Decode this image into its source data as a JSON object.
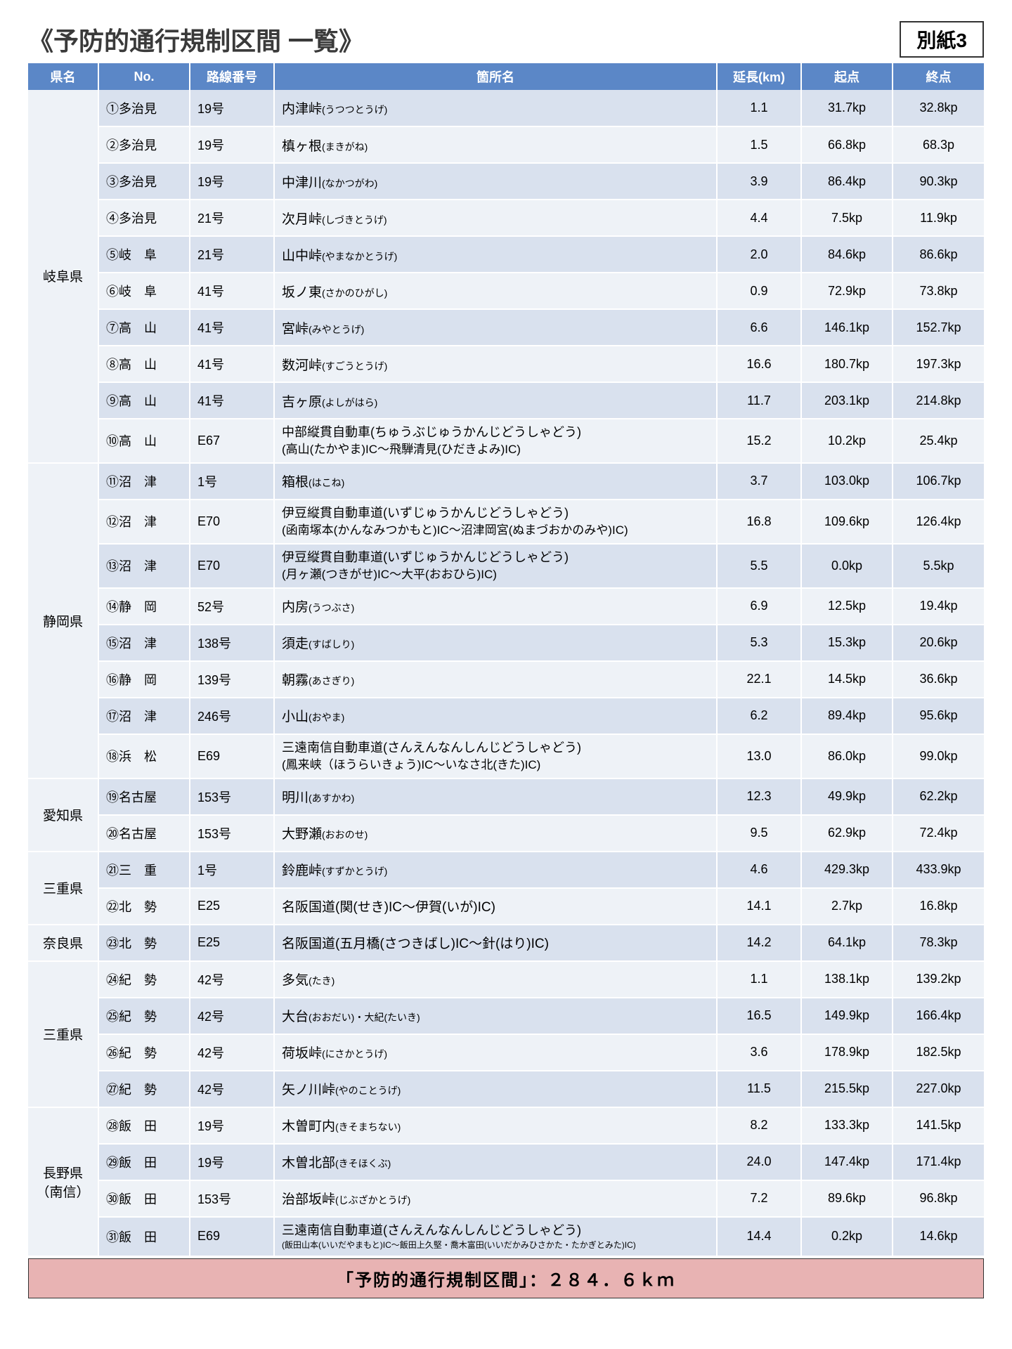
{
  "header": {
    "title": "《予防的通行規制区間 一覧》",
    "attachment": "別紙3"
  },
  "columns": [
    "県名",
    "No.",
    "路線番号",
    "箇所名",
    "延長(km)",
    "起点",
    "終点"
  ],
  "total": "「予防的通行規制区間」：２８４．６ｋｍ",
  "prefGroups": [
    {
      "pref": "岐阜県",
      "rows": [
        {
          "no": "①多治見",
          "route": "19号",
          "name": "内津峠",
          "reading": "(うつつとうげ)",
          "len": "1.1",
          "start": "31.7kp",
          "end": "32.8kp"
        },
        {
          "no": "②多治見",
          "route": "19号",
          "name": "槙ヶ根",
          "reading": "(まきがね)",
          "len": "1.5",
          "start": "66.8kp",
          "end": "68.3p"
        },
        {
          "no": "③多治見",
          "route": "19号",
          "name": "中津川",
          "reading": "(なかつがわ)",
          "len": "3.9",
          "start": "86.4kp",
          "end": "90.3kp"
        },
        {
          "no": "④多治見",
          "route": "21号",
          "name": "次月峠",
          "reading": "(しづきとうげ)",
          "len": "4.4",
          "start": "7.5kp",
          "end": "11.9kp"
        },
        {
          "no": "⑤岐　阜",
          "route": "21号",
          "name": "山中峠",
          "reading": "(やまなかとうげ)",
          "len": "2.0",
          "start": "84.6kp",
          "end": "86.6kp"
        },
        {
          "no": "⑥岐　阜",
          "route": "41号",
          "name": "坂ノ東",
          "reading": "(さかのひがし)",
          "len": "0.9",
          "start": "72.9kp",
          "end": "73.8kp"
        },
        {
          "no": "⑦高　山",
          "route": "41号",
          "name": "宮峠",
          "reading": "(みやとうげ)",
          "len": "6.6",
          "start": "146.1kp",
          "end": "152.7kp"
        },
        {
          "no": "⑧高　山",
          "route": "41号",
          "name": "数河峠",
          "reading": "(すごうとうげ)",
          "len": "16.6",
          "start": "180.7kp",
          "end": "197.3kp"
        },
        {
          "no": "⑨高　山",
          "route": "41号",
          "name": "吉ヶ原",
          "reading": "(よしがはら)",
          "len": "11.7",
          "start": "203.1kp",
          "end": "214.8kp"
        },
        {
          "no": "⑩高　山",
          "route": "E67",
          "name2": "中部縦貫自動車(ちゅうぶじゅうかんじどうしゃどう)",
          "name2b": "(高山(たかやま)IC～飛騨清見(ひだきよみ)IC)",
          "len": "15.2",
          "start": "10.2kp",
          "end": "25.4kp"
        }
      ]
    },
    {
      "pref": "静岡県",
      "rows": [
        {
          "no": "⑪沼　津",
          "route": "1号",
          "name": "箱根",
          "reading": "(はこね)",
          "len": "3.7",
          "start": "103.0kp",
          "end": "106.7kp"
        },
        {
          "no": "⑫沼　津",
          "route": "E70",
          "name2": "伊豆縦貫自動車道(いずじゅうかんじどうしゃどう)",
          "name2b": "(函南塚本(かんなみつかもと)IC～沼津岡宮(ぬまづおかのみや)IC)",
          "len": "16.8",
          "start": "109.6kp",
          "end": "126.4kp"
        },
        {
          "no": "⑬沼　津",
          "route": "E70",
          "name2": "伊豆縦貫自動車道(いずじゅうかんじどうしゃどう)",
          "name2b": "(月ヶ瀬(つきがせ)IC～大平(おおひら)IC)",
          "len": "5.5",
          "start": "0.0kp",
          "end": "5.5kp"
        },
        {
          "no": "⑭静　岡",
          "route": "52号",
          "name": "内房",
          "reading": "(うつぶさ)",
          "len": "6.9",
          "start": "12.5kp",
          "end": "19.4kp"
        },
        {
          "no": "⑮沼　津",
          "route": "138号",
          "name": "須走",
          "reading": "(すばしり)",
          "len": "5.3",
          "start": "15.3kp",
          "end": "20.6kp"
        },
        {
          "no": "⑯静　岡",
          "route": "139号",
          "name": "朝霧",
          "reading": "(あさぎり)",
          "len": "22.1",
          "start": "14.5kp",
          "end": "36.6kp"
        },
        {
          "no": "⑰沼　津",
          "route": "246号",
          "name": "小山",
          "reading": "(おやま)",
          "len": "6.2",
          "start": "89.4kp",
          "end": "95.6kp"
        },
        {
          "no": "⑱浜　松",
          "route": "E69",
          "name2": "三遠南信自動車道(さんえんなんしんじどうしゃどう)",
          "name2b": "(鳳来峡（ほうらいきょう)IC～いなさ北(きた)IC)",
          "len": "13.0",
          "start": "86.0kp",
          "end": "99.0kp"
        }
      ]
    },
    {
      "pref": "愛知県",
      "rows": [
        {
          "no": "⑲名古屋",
          "route": "153号",
          "name": "明川",
          "reading": "(あすかわ)",
          "len": "12.3",
          "start": "49.9kp",
          "end": "62.2kp"
        },
        {
          "no": "⑳名古屋",
          "route": "153号",
          "name": "大野瀬",
          "reading": "(おおのせ)",
          "len": "9.5",
          "start": "62.9kp",
          "end": "72.4kp"
        }
      ]
    },
    {
      "pref": "三重県",
      "rows": [
        {
          "no": "㉑三　重",
          "route": "1号",
          "name": "鈴鹿峠",
          "reading": "(すずかとうげ)",
          "len": "4.6",
          "start": "429.3kp",
          "end": "433.9kp"
        },
        {
          "no": "㉒北　勢",
          "route": "E25",
          "nameOnly": "名阪国道(関(せき)IC～伊賀(いが)IC)",
          "len": "14.1",
          "start": "2.7kp",
          "end": "16.8kp"
        }
      ]
    },
    {
      "pref": "奈良県",
      "rows": [
        {
          "no": "㉓北　勢",
          "route": "E25",
          "nameOnly": "名阪国道(五月橋(さつきばし)IC～針(はり)IC)",
          "len": "14.2",
          "start": "64.1kp",
          "end": "78.3kp"
        }
      ]
    },
    {
      "pref": "三重県",
      "rows": [
        {
          "no": "㉔紀　勢",
          "route": "42号",
          "name": "多気",
          "reading": "(たき)",
          "len": "1.1",
          "start": "138.1kp",
          "end": "139.2kp"
        },
        {
          "no": "㉕紀　勢",
          "route": "42号",
          "name": "大台",
          "reading": "(おおだい)・大紀(たいき)",
          "len": "16.5",
          "start": "149.9kp",
          "end": "166.4kp"
        },
        {
          "no": "㉖紀　勢",
          "route": "42号",
          "name": "荷坂峠",
          "reading": "(にさかとうげ)",
          "len": "3.6",
          "start": "178.9kp",
          "end": "182.5kp"
        },
        {
          "no": "㉗紀　勢",
          "route": "42号",
          "name": "矢ノ川峠",
          "reading": "(やのことうげ)",
          "len": "11.5",
          "start": "215.5kp",
          "end": "227.0kp"
        }
      ]
    },
    {
      "pref": "長野県\n（南信）",
      "rows": [
        {
          "no": "㉘飯　田",
          "route": "19号",
          "name": "木曽町内",
          "reading": "(きそまちない)",
          "len": "8.2",
          "start": "133.3kp",
          "end": "141.5kp"
        },
        {
          "no": "㉙飯　田",
          "route": "19号",
          "name": "木曽北部",
          "reading": "(きそほくぶ)",
          "len": "24.0",
          "start": "147.4kp",
          "end": "171.4kp"
        },
        {
          "no": "㉚飯　田",
          "route": "153号",
          "name": "治部坂峠",
          "reading": "(じぶざかとうげ)",
          "len": "7.2",
          "start": "89.6kp",
          "end": "96.8kp"
        },
        {
          "no": "㉛飯　田",
          "route": "E69",
          "name2": "三遠南信自動車道(さんえんなんしんじどうしゃどう)",
          "name2b": "(飯田山本(いいだやまもと)IC～飯田上久堅・喬木富田(いいだかみひさかた・たかぎとみた)IC)",
          "small": true,
          "len": "14.4",
          "start": "0.2kp",
          "end": "14.6kp"
        }
      ]
    }
  ]
}
